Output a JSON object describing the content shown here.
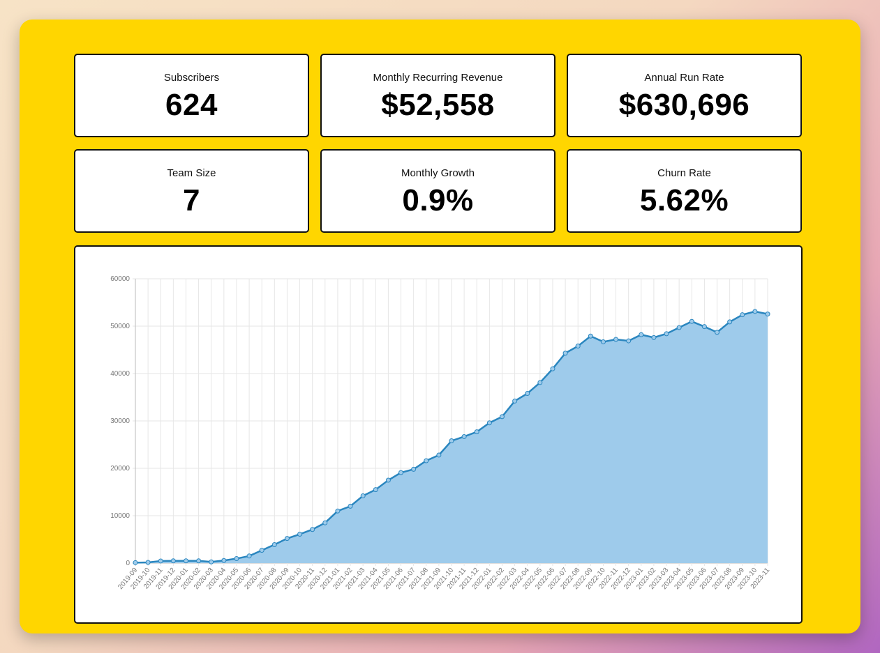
{
  "stats": [
    {
      "label": "Subscribers",
      "value": "624"
    },
    {
      "label": "Monthly Recurring Revenue",
      "value": "$52,558"
    },
    {
      "label": "Annual Run Rate",
      "value": "$630,696"
    },
    {
      "label": "Team Size",
      "value": "7"
    },
    {
      "label": "Monthly Growth",
      "value": "0.9%"
    },
    {
      "label": "Churn Rate",
      "value": "5.62%"
    }
  ],
  "chart_data": {
    "type": "area",
    "title": "",
    "xlabel": "",
    "ylabel": "",
    "ylim": [
      0,
      60000
    ],
    "yticks": [
      "0",
      "10000",
      "20000",
      "30000",
      "40000",
      "50000",
      "60000"
    ],
    "grid": true,
    "colors": {
      "line": "#2a86bf",
      "fill": "#9ecbeb"
    },
    "categories": [
      "2019-09",
      "2019-10",
      "2019-11",
      "2019-12",
      "2020-01",
      "2020-02",
      "2020-03",
      "2020-04",
      "2020-05",
      "2020-06",
      "2020-07",
      "2020-08",
      "2020-09",
      "2020-10",
      "2020-11",
      "2020-12",
      "2021-01",
      "2021-02",
      "2021-03",
      "2021-04",
      "2021-05",
      "2021-06",
      "2021-07",
      "2021-08",
      "2021-09",
      "2021-10",
      "2021-11",
      "2021-12",
      "2022-01",
      "2022-02",
      "2022-03",
      "2022-04",
      "2022-05",
      "2022-06",
      "2022-07",
      "2022-08",
      "2022-09",
      "2022-10",
      "2022-11",
      "2022-12",
      "2023-01",
      "2023-02",
      "2023-03",
      "2023-04",
      "2023-05",
      "2023-06",
      "2023-07",
      "2023-08",
      "2023-09",
      "2023-10",
      "2023-11"
    ],
    "values": [
      100,
      150,
      450,
      480,
      480,
      480,
      250,
      550,
      950,
      1500,
      2700,
      3900,
      5200,
      6100,
      7100,
      8500,
      11000,
      12000,
      14200,
      15500,
      17500,
      19100,
      19800,
      21600,
      22800,
      25800,
      26700,
      27700,
      29600,
      30900,
      34200,
      35800,
      38100,
      41000,
      44300,
      45800,
      47900,
      46700,
      47200,
      46900,
      48200,
      47600,
      48400,
      49700,
      51000,
      49900,
      48700,
      50900,
      52400,
      53100,
      52558
    ]
  }
}
